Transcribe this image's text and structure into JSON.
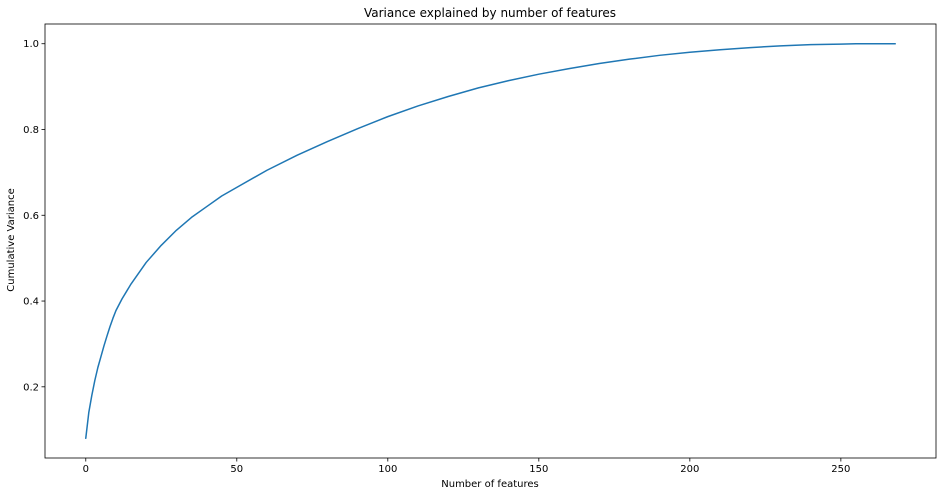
{
  "chart_data": {
    "type": "line",
    "title": "Variance explained by number of features",
    "xlabel": "Number of features",
    "ylabel": "Cumulative Variance",
    "xlim": [
      -13.5,
      281.5
    ],
    "ylim": [
      0.034,
      1.046
    ],
    "xticks": [
      0,
      50,
      100,
      150,
      200,
      250
    ],
    "xtick_labels": [
      "0",
      "50",
      "100",
      "150",
      "200",
      "250"
    ],
    "yticks": [
      0.2,
      0.4,
      0.6,
      0.8,
      1.0
    ],
    "ytick_labels": [
      "0.2",
      "0.4",
      "0.6",
      "0.8",
      "1.0"
    ],
    "grid": false,
    "legend": "none",
    "line_color": "#1f77b4",
    "series": [
      {
        "x": [
          0,
          1,
          2,
          3,
          4,
          5,
          6,
          7,
          8,
          9,
          10,
          12,
          15,
          20,
          25,
          30,
          35,
          40,
          45,
          50,
          60,
          70,
          80,
          90,
          100,
          110,
          120,
          130,
          140,
          150,
          160,
          170,
          180,
          190,
          200,
          210,
          220,
          230,
          240,
          250,
          255,
          260,
          265,
          268
        ],
        "y": [
          0.08,
          0.14,
          0.18,
          0.215,
          0.245,
          0.27,
          0.295,
          0.318,
          0.34,
          0.36,
          0.378,
          0.405,
          0.44,
          0.49,
          0.53,
          0.565,
          0.595,
          0.62,
          0.645,
          0.665,
          0.705,
          0.74,
          0.772,
          0.802,
          0.83,
          0.855,
          0.877,
          0.897,
          0.914,
          0.929,
          0.942,
          0.954,
          0.964,
          0.973,
          0.98,
          0.986,
          0.991,
          0.995,
          0.998,
          0.999,
          1.0,
          1.0,
          1.0,
          1.0
        ]
      }
    ]
  }
}
